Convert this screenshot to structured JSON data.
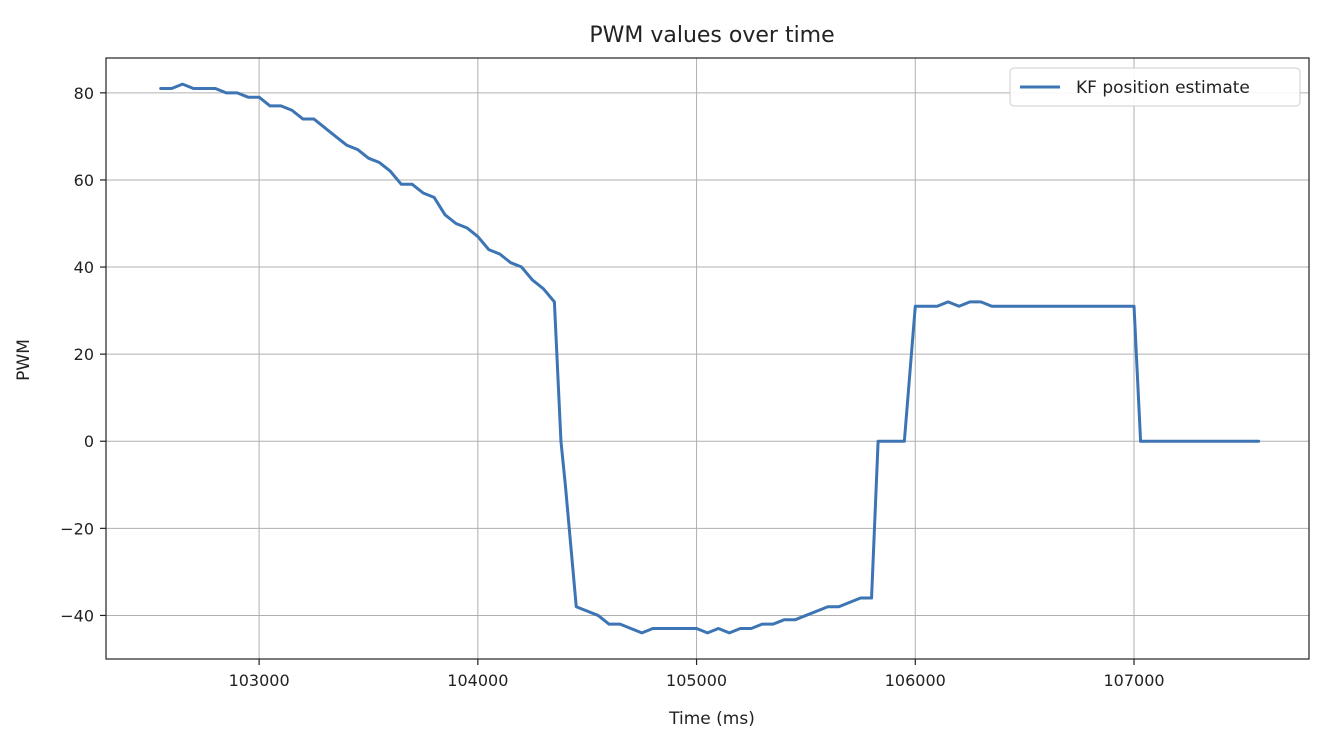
{
  "chart_data": {
    "type": "line",
    "title": "PWM values over time",
    "xlabel": "Time (ms)",
    "ylabel": "PWM",
    "xlim": [
      102300,
      107800
    ],
    "ylim": [
      -50,
      88
    ],
    "xticks": [
      103000,
      104000,
      105000,
      106000,
      107000
    ],
    "yticks": [
      -40,
      -20,
      0,
      20,
      40,
      60,
      80
    ],
    "grid": true,
    "legend_position": "top-right",
    "colors": {
      "series": "#3d74b4",
      "grid": "#b0b0b0",
      "axis": "#222222"
    },
    "series": [
      {
        "name": "KF position estimate",
        "x": [
          102550,
          102600,
          102650,
          102700,
          102750,
          102800,
          102850,
          102900,
          102950,
          103000,
          103050,
          103100,
          103150,
          103200,
          103250,
          103300,
          103350,
          103400,
          103450,
          103500,
          103550,
          103600,
          103650,
          103700,
          103750,
          103800,
          103850,
          103900,
          103950,
          104000,
          104050,
          104100,
          104150,
          104200,
          104250,
          104300,
          104350,
          104380,
          104400,
          104450,
          104500,
          104550,
          104600,
          104650,
          104700,
          104750,
          104800,
          104850,
          104900,
          104950,
          105000,
          105050,
          105100,
          105150,
          105200,
          105250,
          105300,
          105350,
          105400,
          105450,
          105500,
          105550,
          105600,
          105650,
          105700,
          105750,
          105800,
          105830,
          105850,
          105900,
          105950,
          106000,
          106050,
          106100,
          106150,
          106200,
          106250,
          106300,
          106350,
          106400,
          106500,
          106600,
          106700,
          106800,
          106900,
          107000,
          107030,
          107100,
          107200,
          107300,
          107400,
          107500,
          107570
        ],
        "y": [
          81,
          81,
          82,
          81,
          81,
          81,
          80,
          80,
          79,
          79,
          77,
          77,
          76,
          74,
          74,
          72,
          70,
          68,
          67,
          65,
          64,
          62,
          59,
          59,
          57,
          56,
          52,
          50,
          49,
          47,
          44,
          43,
          41,
          40,
          37,
          35,
          32,
          0,
          -10,
          -38,
          -39,
          -40,
          -42,
          -42,
          -43,
          -44,
          -43,
          -43,
          -43,
          -43,
          -43,
          -44,
          -43,
          -44,
          -43,
          -43,
          -42,
          -42,
          -41,
          -41,
          -40,
          -39,
          -38,
          -38,
          -37,
          -36,
          -36,
          0,
          0,
          0,
          0,
          31,
          31,
          31,
          32,
          31,
          32,
          32,
          31,
          31,
          31,
          31,
          31,
          31,
          31,
          31,
          0,
          0,
          0,
          0,
          0,
          0,
          0
        ]
      }
    ]
  }
}
